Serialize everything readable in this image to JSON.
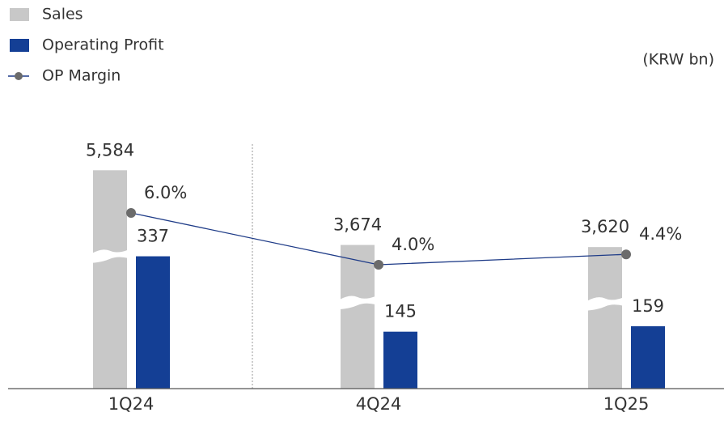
{
  "chart_data": {
    "type": "bar-line",
    "unit_note": "(KRW bn)",
    "categories": [
      "1Q24",
      "4Q24",
      "1Q25"
    ],
    "series": [
      {
        "name": "Sales",
        "color": "#c8c8c8",
        "values": [
          5584,
          3674,
          3620
        ],
        "value_labels": [
          "5,584",
          "3,674",
          "3,620"
        ],
        "broken": true
      },
      {
        "name": "Operating Profit",
        "color": "#143f95",
        "values": [
          337,
          145,
          159
        ]
      },
      {
        "name": "OP Margin",
        "type": "line",
        "color": "#1f3c88",
        "marker_color": "#6b6b6b",
        "values": [
          6.0,
          4.0,
          4.4
        ],
        "value_labels": [
          "6.0%",
          "4.0%",
          "4.4%"
        ]
      }
    ]
  }
}
